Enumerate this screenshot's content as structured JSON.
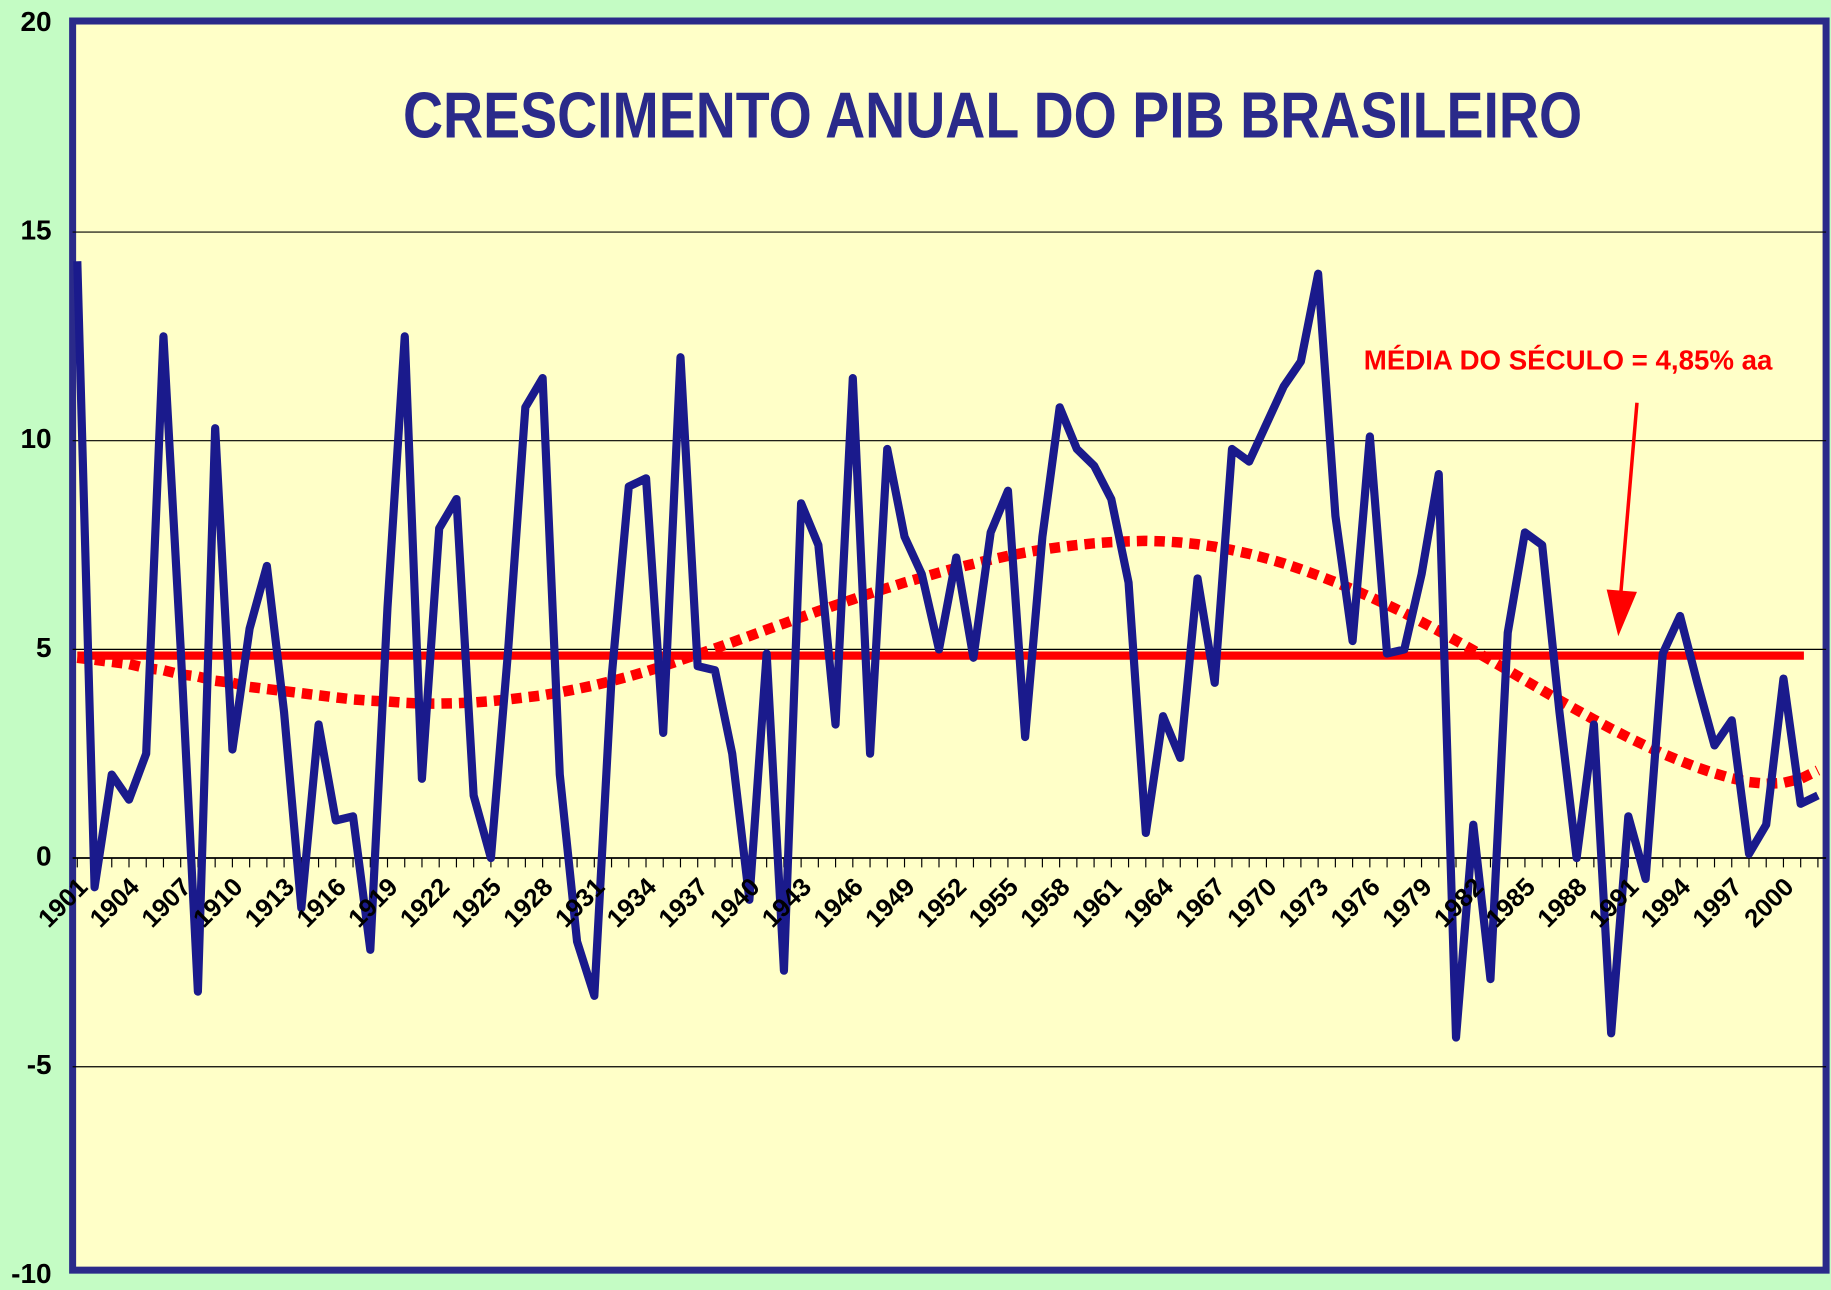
{
  "chart_data": {
    "type": "line",
    "title": "CRESCIMENTO ANUAL DO PIB BRASILEIRO",
    "annotation": "MÉDIA DO SÉCULO = 4,85%  aa",
    "x": [
      1901,
      1902,
      1903,
      1904,
      1905,
      1906,
      1907,
      1908,
      1909,
      1910,
      1911,
      1912,
      1913,
      1914,
      1915,
      1916,
      1917,
      1918,
      1919,
      1920,
      1921,
      1922,
      1923,
      1924,
      1925,
      1926,
      1927,
      1928,
      1929,
      1930,
      1931,
      1932,
      1933,
      1934,
      1935,
      1936,
      1937,
      1938,
      1939,
      1940,
      1941,
      1942,
      1943,
      1944,
      1945,
      1946,
      1947,
      1948,
      1949,
      1950,
      1951,
      1952,
      1953,
      1954,
      1955,
      1956,
      1957,
      1958,
      1959,
      1960,
      1961,
      1962,
      1963,
      1964,
      1965,
      1966,
      1967,
      1968,
      1969,
      1970,
      1971,
      1972,
      1973,
      1974,
      1975,
      1976,
      1977,
      1978,
      1979,
      1980,
      1981,
      1982,
      1983,
      1984,
      1985,
      1986,
      1987,
      1988,
      1989,
      1990,
      1991,
      1992,
      1993,
      1994,
      1995,
      1996,
      1997,
      1998,
      1999,
      2000,
      2001,
      2002
    ],
    "xlim": [
      1901,
      2002
    ],
    "xticks": [
      1901,
      1904,
      1907,
      1910,
      1913,
      1916,
      1919,
      1922,
      1925,
      1928,
      1931,
      1934,
      1937,
      1940,
      1943,
      1946,
      1949,
      1952,
      1955,
      1958,
      1961,
      1964,
      1967,
      1970,
      1973,
      1976,
      1979,
      1982,
      1985,
      1988,
      1991,
      1994,
      1997,
      2000
    ],
    "ylim": [
      -10,
      20
    ],
    "yticks": [
      -10,
      -5,
      0,
      5,
      10,
      15,
      20
    ],
    "grid": true,
    "series": [
      {
        "color": "#1a1a8c",
        "values": [
          14.3,
          -0.7,
          2.0,
          1.4,
          2.5,
          12.5,
          5.0,
          -3.2,
          10.3,
          2.6,
          5.5,
          7.0,
          3.5,
          -1.2,
          3.2,
          0.9,
          1.0,
          -2.2,
          6.0,
          12.5,
          1.9,
          7.9,
          8.6,
          1.5,
          0.0,
          5.0,
          10.8,
          11.5,
          2.0,
          -2.0,
          -3.3,
          4.3,
          8.9,
          9.1,
          3.0,
          12.0,
          4.6,
          4.5,
          2.5,
          -1.0,
          4.9,
          -2.7,
          8.5,
          7.5,
          3.2,
          11.5,
          2.5,
          9.8,
          7.7,
          6.8,
          5.0,
          7.2,
          4.8,
          7.8,
          8.8,
          2.9,
          7.7,
          10.8,
          9.8,
          9.4,
          8.6,
          6.6,
          0.6,
          3.4,
          2.4,
          6.7,
          4.2,
          9.8,
          9.5,
          10.4,
          11.3,
          11.9,
          14.0,
          8.2,
          5.2,
          10.1,
          4.9,
          5.0,
          6.8,
          9.2,
          -4.3,
          0.8,
          -2.9,
          5.4,
          7.8,
          7.5,
          3.5,
          0.0,
          3.2,
          -4.2,
          1.0,
          -0.5,
          4.9,
          5.8,
          4.2,
          2.7,
          3.3,
          0.1,
          0.8,
          4.3,
          1.3,
          1.5
        ]
      }
    ],
    "trend": {
      "color": "#ff0000",
      "values": [
        4.8,
        4.75,
        4.7,
        4.65,
        4.55,
        4.5,
        4.4,
        4.35,
        4.25,
        4.2,
        4.1,
        4.05,
        4.0,
        3.95,
        3.9,
        3.85,
        3.8,
        3.77,
        3.75,
        3.72,
        3.7,
        3.7,
        3.71,
        3.73,
        3.76,
        3.8,
        3.85,
        3.9,
        3.97,
        4.05,
        4.14,
        4.24,
        4.35,
        4.47,
        4.6,
        4.74,
        4.88,
        5.02,
        5.17,
        5.32,
        5.47,
        5.62,
        5.77,
        5.92,
        6.06,
        6.2,
        6.34,
        6.47,
        6.6,
        6.72,
        6.84,
        6.95,
        7.05,
        7.15,
        7.24,
        7.32,
        7.39,
        7.45,
        7.5,
        7.54,
        7.57,
        7.59,
        7.6,
        7.59,
        7.56,
        7.52,
        7.46,
        7.38,
        7.29,
        7.18,
        7.06,
        6.92,
        6.77,
        6.61,
        6.44,
        6.26,
        6.07,
        5.87,
        5.66,
        5.44,
        5.21,
        4.98,
        4.74,
        4.5,
        4.26,
        4.02,
        3.78,
        3.55,
        3.32,
        3.1,
        2.89,
        2.69,
        2.5,
        2.33,
        2.17,
        2.03,
        1.91,
        1.82,
        1.78,
        1.8,
        1.9,
        2.1
      ]
    },
    "reference_line": {
      "value": 4.85,
      "color": "#ff0000"
    }
  }
}
